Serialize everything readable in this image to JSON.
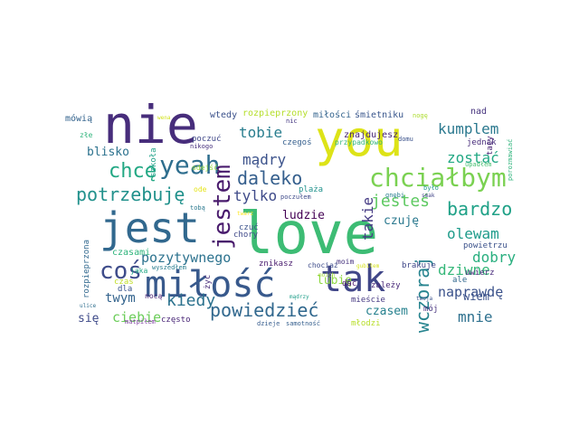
{
  "words": [
    {
      "text": "you",
      "color": "#dde318",
      "weight": 10
    },
    {
      "text": "love",
      "color": "#3dbc74",
      "weight": 10
    },
    {
      "text": "nie",
      "color": "#472d7b",
      "weight": 10
    },
    {
      "text": "jest",
      "color": "#31688e",
      "weight": 8
    },
    {
      "text": "miłość",
      "color": "#38598c",
      "weight": 7
    },
    {
      "text": "tak",
      "color": "#404688",
      "weight": 7
    },
    {
      "text": "yeah",
      "color": "#2e6e8e",
      "weight": 6
    },
    {
      "text": "chciałbym",
      "color": "#7ad151",
      "weight": 6
    },
    {
      "text": "jestem",
      "color": "#481a6c",
      "weight": 5
    },
    {
      "text": "coś",
      "color": "#3e4c8a",
      "weight": 5
    },
    {
      "text": "chcę",
      "color": "#23a884",
      "weight": 5
    },
    {
      "text": "potrzebuję",
      "color": "#21918c",
      "weight": 5
    },
    {
      "text": "daleko",
      "color": "#355f8d",
      "weight": 5
    },
    {
      "text": "bardzo",
      "color": "#1fa187",
      "weight": 5
    },
    {
      "text": "powiedzieć",
      "color": "#31688e",
      "weight": 5
    },
    {
      "text": "wczoraj",
      "color": "#25838e",
      "weight": 5
    },
    {
      "text": "jesteś",
      "color": "#5ec962",
      "weight": 4
    },
    {
      "text": "kiedy",
      "color": "#2c728e",
      "weight": 4
    },
    {
      "text": "tobie",
      "color": "#287d8e",
      "weight": 4
    },
    {
      "text": "mądry",
      "color": "#3b528b",
      "weight": 3
    },
    {
      "text": "tylko",
      "color": "#3e4a89",
      "weight": 3
    },
    {
      "text": "kumplem",
      "color": "#2a788e",
      "weight": 3
    },
    {
      "text": "zostać",
      "color": "#22a884",
      "weight": 3
    },
    {
      "text": "olewam",
      "color": "#1e9b8a",
      "weight": 3
    },
    {
      "text": "dobry",
      "color": "#29af7f",
      "weight": 3
    },
    {
      "text": "dziwne",
      "color": "#35b779",
      "weight": 3
    },
    {
      "text": "naprawdę",
      "color": "#3b528b",
      "weight": 3
    },
    {
      "text": "mnie",
      "color": "#2d708e",
      "weight": 3
    },
    {
      "text": "takie",
      "color": "#443983",
      "weight": 3
    },
    {
      "text": "pozytywnego",
      "color": "#2c728e",
      "weight": 3
    },
    {
      "text": "ciebie",
      "color": "#6ccd5a",
      "weight": 3
    },
    {
      "text": "twym",
      "color": "#33638d",
      "weight": 3
    },
    {
      "text": "ludzie",
      "color": "#440154",
      "weight": 2
    },
    {
      "text": "czuję",
      "color": "#2a788e",
      "weight": 2
    },
    {
      "text": "czasem",
      "color": "#26818e",
      "weight": 2
    },
    {
      "text": "blisko",
      "color": "#2c728e",
      "weight": 2
    },
    {
      "text": "się",
      "color": "#3e4a89",
      "weight": 2
    },
    {
      "text": "lubię",
      "color": "#8fd744",
      "weight": 2
    },
    {
      "text": "wiem",
      "color": "#3b528b",
      "weight": 2
    },
    {
      "text": "rozpieprzony",
      "color": "#b5de2b",
      "weight": 1
    },
    {
      "text": "miłości",
      "color": "#33638d",
      "weight": 1
    },
    {
      "text": "śmietniku",
      "color": "#39568c",
      "weight": 1
    },
    {
      "text": "wtedy",
      "color": "#3b518b",
      "weight": 1
    },
    {
      "text": "nad",
      "color": "#46337e",
      "weight": 1
    },
    {
      "text": "mówią",
      "color": "#33638d",
      "weight": 1
    },
    {
      "text": "wena",
      "color": "#d2e21b",
      "weight": 1
    },
    {
      "text": "złe",
      "color": "#2fb47c",
      "weight": 1
    },
    {
      "text": "czas",
      "color": "#c0df25",
      "weight": 1
    },
    {
      "text": "szkoła",
      "color": "#1fa188",
      "weight": 1
    },
    {
      "text": "nikogo",
      "color": "#46307e",
      "weight": 1
    },
    {
      "text": "poczuć",
      "color": "#3f4788",
      "weight": 1
    },
    {
      "text": "nic",
      "color": "#453882",
      "weight": 1
    },
    {
      "text": "czegoś",
      "color": "#355f8d",
      "weight": 1
    },
    {
      "text": "przypadkowo",
      "color": "#31b57b",
      "weight": 1
    },
    {
      "text": "znajdujesz",
      "color": "#482576",
      "weight": 1
    },
    {
      "text": "nogę",
      "color": "#addc30",
      "weight": 1
    },
    {
      "text": "jednak",
      "color": "#472c7a",
      "weight": 1
    },
    {
      "text": "tacy",
      "color": "#482475",
      "weight": 1
    },
    {
      "text": "porozmawiać",
      "color": "#2fb47c",
      "weight": 1
    },
    {
      "text": "upadłem",
      "color": "#44bf70",
      "weight": 1
    },
    {
      "text": "domu",
      "color": "#3b528b",
      "weight": 1
    },
    {
      "text": "było",
      "color": "#1f998a",
      "weight": 1
    },
    {
      "text": "gnębi",
      "color": "#287d8e",
      "weight": 1
    },
    {
      "text": "smak",
      "color": "#414487",
      "weight": 1
    },
    {
      "text": "odejść",
      "color": "#95d840",
      "weight": 1
    },
    {
      "text": "ode",
      "color": "#e5e419",
      "weight": 1
    },
    {
      "text": "tobą",
      "color": "#2a788e",
      "weight": 1
    },
    {
      "text": "twarz",
      "color": "#fde725",
      "weight": 1
    },
    {
      "text": "poczułem",
      "color": "#3e4a89",
      "weight": 1
    },
    {
      "text": "plaża",
      "color": "#20928c",
      "weight": 1
    },
    {
      "text": "chory",
      "color": "#3f4889",
      "weight": 1
    },
    {
      "text": "czuć",
      "color": "#3b528b",
      "weight": 1
    },
    {
      "text": "czasami",
      "color": "#2fb47c",
      "weight": 1
    },
    {
      "text": "jaka",
      "color": "#22a785",
      "weight": 1
    },
    {
      "text": "wyszedłem",
      "color": "#287d8e",
      "weight": 1
    },
    {
      "text": "rozpieprzona",
      "color": "#31688e",
      "weight": 1
    },
    {
      "text": "żyć",
      "color": "#472c7a",
      "weight": 1
    },
    {
      "text": "dla",
      "color": "#3a548c",
      "weight": 1
    },
    {
      "text": "ulice",
      "color": "#2e6e8e",
      "weight": 1
    },
    {
      "text": "nocą",
      "color": "#482173",
      "weight": 1
    },
    {
      "text": "mądrzy",
      "color": "#1f9e89",
      "weight": 1
    },
    {
      "text": "znikasz",
      "color": "#481b6d",
      "weight": 1
    },
    {
      "text": "moim",
      "color": "#46337e",
      "weight": 1
    },
    {
      "text": "chociaż",
      "color": "#3e4c8a",
      "weight": 1
    },
    {
      "text": "gubiłem",
      "color": "#d5e21a",
      "weight": 1
    },
    {
      "text": "moich",
      "color": "#a2da37",
      "weight": 1
    },
    {
      "text": "powietrzu",
      "color": "#3b528b",
      "weight": 1
    },
    {
      "text": "brakuje",
      "color": "#3f4788",
      "weight": 1
    },
    {
      "text": "ale",
      "color": "#31688e",
      "weight": 1
    },
    {
      "text": "uwierz",
      "color": "#472a7a",
      "weight": 1
    },
    {
      "text": "zależy",
      "color": "#482878",
      "weight": 1
    },
    {
      "text": "dać",
      "color": "#481769",
      "weight": 1
    },
    {
      "text": "mieście",
      "color": "#453882",
      "weight": 1
    },
    {
      "text": "mój",
      "color": "#46327e",
      "weight": 1
    },
    {
      "text": "często",
      "color": "#482576",
      "weight": 1
    },
    {
      "text": "matpiłem",
      "color": "#7e3ea1",
      "weight": 1
    },
    {
      "text": "dzieje",
      "color": "#365c8d",
      "weight": 1
    },
    {
      "text": "samotność",
      "color": "#355f8d",
      "weight": 1
    },
    {
      "text": "młodzi",
      "color": "#b8de29",
      "weight": 1
    },
    {
      "text": "twoja",
      "color": "#3b528b",
      "weight": 1
    }
  ]
}
